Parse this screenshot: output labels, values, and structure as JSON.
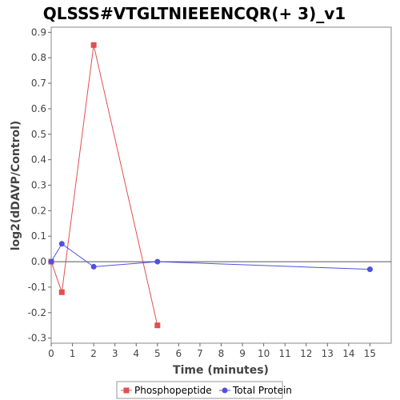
{
  "chart_data": {
    "type": "line",
    "title": "QLSSS#VTGLTNIEEENCQR(+ 3)_v1",
    "xlabel": "Time (minutes)",
    "ylabel": "log2(dDAVP/Control)",
    "xlim": [
      0,
      16
    ],
    "ylim": [
      -0.32,
      0.92
    ],
    "x_ticks": [
      0,
      1,
      2,
      3,
      4,
      5,
      6,
      7,
      8,
      9,
      10,
      11,
      12,
      13,
      14,
      15
    ],
    "y_ticks": [
      -0.3,
      -0.2,
      -0.1,
      0.0,
      0.1,
      0.2,
      0.3,
      0.4,
      0.5,
      0.6,
      0.7,
      0.8,
      0.9
    ],
    "y_tick_labels": [
      "-0.3",
      "-0.2",
      "-0.1",
      "0.0",
      "0.1",
      "0.2",
      "0.3",
      "0.4",
      "0.5",
      "0.6",
      "0.7",
      "0.8",
      "0.9"
    ],
    "zero_line": true,
    "grid": false,
    "legend_position": "bottom",
    "series": [
      {
        "name": "Phosphopeptide",
        "color": "#e05050",
        "marker": "square",
        "points": [
          [
            0,
            0.0
          ],
          [
            0.5,
            -0.12
          ],
          [
            2,
            0.85
          ],
          [
            5,
            -0.25
          ]
        ]
      },
      {
        "name": "Total Protein",
        "color": "#5050e0",
        "marker": "circle",
        "points": [
          [
            0,
            0.0
          ],
          [
            0.5,
            0.07
          ],
          [
            2,
            -0.02
          ],
          [
            5,
            0.0
          ],
          [
            15,
            -0.03
          ]
        ]
      }
    ]
  }
}
